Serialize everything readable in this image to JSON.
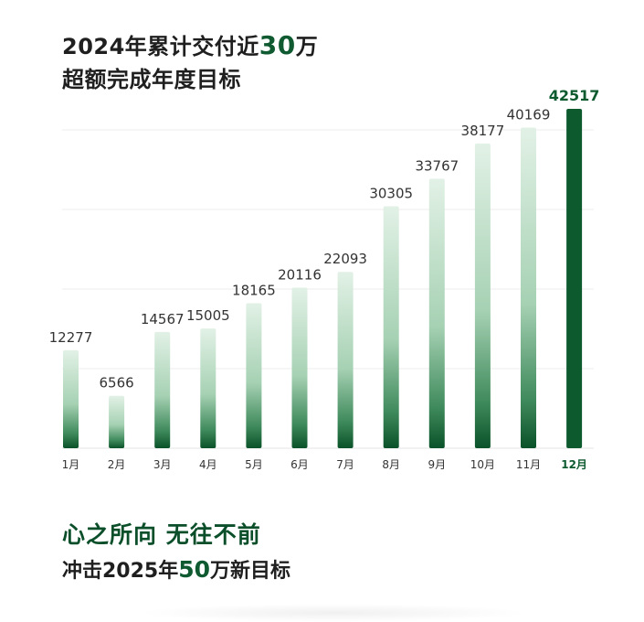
{
  "headline": {
    "line1_prefix": "2024年累计交付近",
    "line1_number": "30",
    "line1_suffix": "万",
    "line2": "超额完成年度目标"
  },
  "chart_data": {
    "type": "bar",
    "categories": [
      "1月",
      "2月",
      "3月",
      "4月",
      "5月",
      "6月",
      "7月",
      "8月",
      "9月",
      "10月",
      "11月",
      "12月"
    ],
    "values": [
      12277,
      6566,
      14567,
      15005,
      18165,
      20116,
      22093,
      30305,
      33767,
      38177,
      40169,
      42517
    ],
    "highlight_index": 11,
    "ylim": [
      0,
      45000
    ],
    "grid": true,
    "colors": {
      "bar_top": "#e2f1e6",
      "bar_bottom": "#0a5229",
      "highlight": "#0d5a2f",
      "grid": "#ececec"
    }
  },
  "slogan": "心之所向 无往不前",
  "target": {
    "prefix": "冲击2025年",
    "number": "50",
    "suffix": "万新目标"
  }
}
